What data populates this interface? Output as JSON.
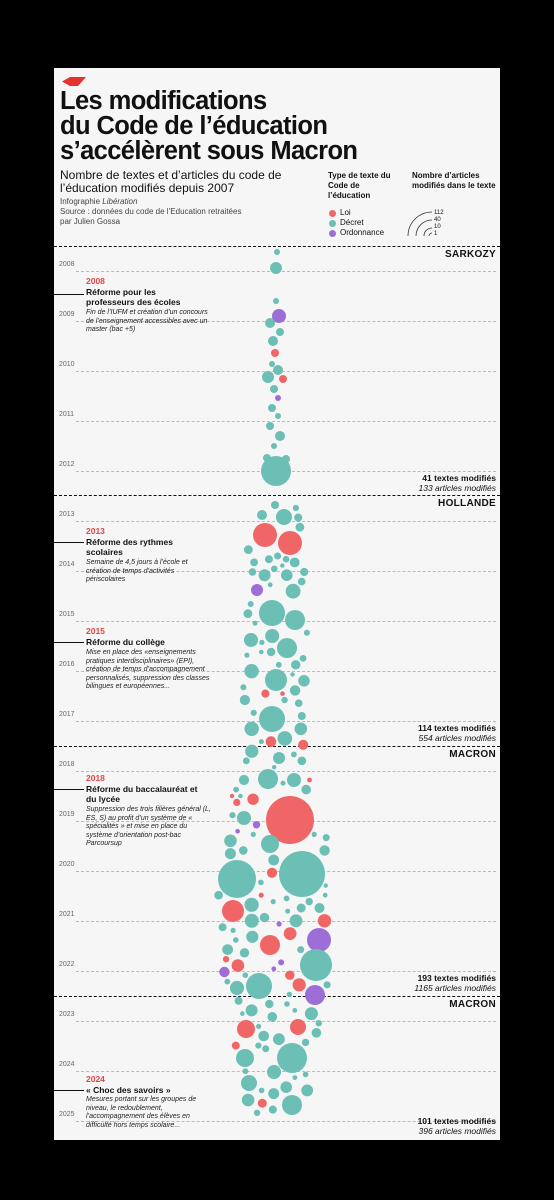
{
  "title_lines": [
    "Les modifications",
    "du Code de l’éducation",
    "s’accélèrent sous Macron"
  ],
  "subtitle": "Nombre de textes et d’articles du code de l’éducation modifiés depuis 2007",
  "credit_prefix": "Infographie ",
  "credit_outlet": "Libération",
  "source": "Source : données du code de l’Education retraitées par Julien Gossa",
  "legend": {
    "type_heading": "Type de texte du Code de l’éducation",
    "types": [
      {
        "label": "Loi",
        "color": "#f06666"
      },
      {
        "label": "Décret",
        "color": "#6bbfb5"
      },
      {
        "label": "Ordonnance",
        "color": "#9d6fd6"
      }
    ],
    "size_heading": "Nombre d’articles modifiés dans le texte",
    "sizes": [
      "112",
      "40",
      "10",
      "1"
    ]
  },
  "years": [
    "2008",
    "2009",
    "2010",
    "2011",
    "2012",
    "2013",
    "2014",
    "2015",
    "2016",
    "2017",
    "2018",
    "2019",
    "2020",
    "2021",
    "2022",
    "2023",
    "2024",
    "2025"
  ],
  "periods": [
    {
      "president": "SARKOZY",
      "texts_label": "41 textes modifiés",
      "articles_label": "133 articles modifiés"
    },
    {
      "president": "HOLLANDE",
      "texts_label": "114 textes modifiés",
      "articles_label": "554 articles modifiés"
    },
    {
      "president": "MACRON",
      "texts_label": "193 textes modifiés",
      "articles_label": "1165 articles modifiés"
    },
    {
      "president": "MACRON",
      "texts_label": "101 textes modifiés",
      "articles_label": "396 articles modifiés"
    }
  ],
  "annotations": [
    {
      "year": "2008",
      "heading": "Réforme pour les professeurs des écoles",
      "body": "Fin de l’IUFM et création d’un concours de l’enseignement accessibles avec un master (bac +5)"
    },
    {
      "year": "2013",
      "heading": "Réforme des rythmes scolaires",
      "body": "Semaine de 4,5 jours à l’école et création de temps d’activités périscolaires"
    },
    {
      "year": "2015",
      "heading": "Réforme du collège",
      "body": "Mise en place des «enseignements pratiques interdisciplinaires» (EPI), création de temps d’accompagnement personnalisés, suppression des classes bilingues et européennes..."
    },
    {
      "year": "2018",
      "heading": "Réforme du baccalauréat et du lycée",
      "body": "Suppression des trois filières général (L, ES, S) au profit d’un système de « spécialités » et mise en place du système d’orientation post-bac Parcoursup"
    },
    {
      "year": "2024",
      "heading": "« Choc des savoirs »",
      "body": "Mesures portant sur les groupes de niveau, le redoublement, l’accompagnement des élèves en difficulté hors temps scolaire..."
    }
  ],
  "chart_data": {
    "type": "scatter",
    "encoding": "packed bubbles; y = year of modification, bubble area ∝ number of articles modified, color = type of text",
    "series": [
      {
        "name": "Loi",
        "color": "#f06666"
      },
      {
        "name": "Décret",
        "color": "#6bbfb5"
      },
      {
        "name": "Ordonnance",
        "color": "#9d6fd6"
      }
    ],
    "periods": [
      {
        "president": "SARKOZY",
        "years": [
          2008,
          2012
        ],
        "texts": 41,
        "articles": 133
      },
      {
        "president": "HOLLANDE",
        "years": [
          2012,
          2017
        ],
        "texts": 114,
        "articles": 554
      },
      {
        "president": "MACRON",
        "years": [
          2017,
          2022
        ],
        "texts": 193,
        "articles": 1165
      },
      {
        "president": "MACRON",
        "years": [
          2022,
          2025
        ],
        "texts": 101,
        "articles": 396
      }
    ],
    "size_legend_articles": [
      112,
      40,
      10,
      1
    ],
    "largest_texts": [
      {
        "year": 2012,
        "type": "Décret",
        "articles": 25
      },
      {
        "year": 2013,
        "type": "Loi",
        "articles": 22
      },
      {
        "year": 2013,
        "type": "Loi",
        "articles": 24
      },
      {
        "year": 2019,
        "type": "Loi",
        "articles": 112
      },
      {
        "year": 2020,
        "type": "Décret",
        "articles": 112
      },
      {
        "year": 2020,
        "type": "Décret",
        "articles": 70
      },
      {
        "year": 2021,
        "type": "Ordonnance",
        "articles": 26
      },
      {
        "year": 2022,
        "type": "Décret",
        "articles": 40
      },
      {
        "year": 2024,
        "type": "Décret",
        "articles": 40
      }
    ]
  }
}
